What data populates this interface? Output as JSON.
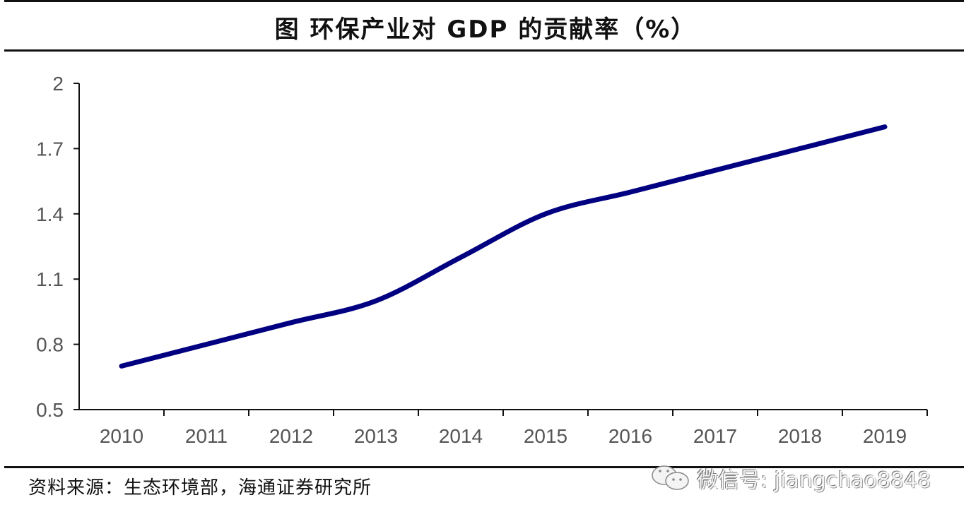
{
  "title": "图  环保产业对 GDP 的贡献率（%）",
  "source": "资料来源：生态环境部，海通证券研究所",
  "watermark": {
    "icon": "wechat-icon",
    "text": "微信号: jiangchao8848"
  },
  "colors": {
    "line": "#000080",
    "axis": "#111111",
    "tick_text": "#555555"
  },
  "chart_data": {
    "type": "line",
    "title": "环保产业对 GDP 的贡献率（%）",
    "xlabel": "",
    "ylabel": "",
    "categories": [
      "2010",
      "2011",
      "2012",
      "2013",
      "2014",
      "2015",
      "2016",
      "2017",
      "2018",
      "2019"
    ],
    "series": [
      {
        "name": "环保产业对GDP的贡献率",
        "values": [
          0.7,
          0.8,
          0.9,
          1.0,
          1.2,
          1.4,
          1.5,
          1.6,
          1.7,
          1.8
        ]
      }
    ],
    "ylim": [
      0.5,
      2.0
    ],
    "yticks": [
      0.5,
      0.8,
      1.1,
      1.4,
      1.7,
      2.0
    ],
    "ytick_labels": [
      "0.5",
      "0.8",
      "1.1",
      "1.4",
      "1.7",
      "2"
    ],
    "grid": false,
    "legend": "none",
    "smooth": true
  }
}
